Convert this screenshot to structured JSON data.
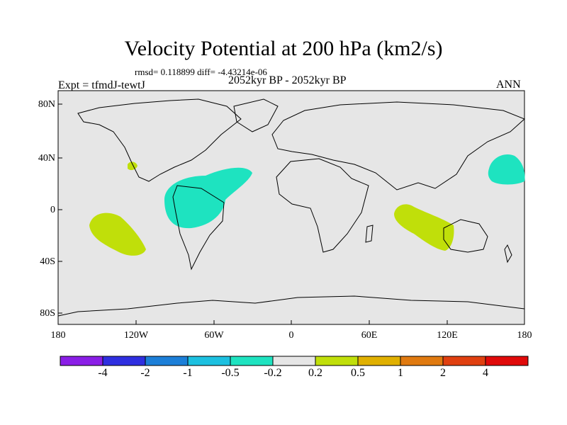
{
  "title": "Velocity Potential at 200 hPa (km2/s)",
  "rmsd_text": "rmsd= 0.118899 diff= -4.43214e-06",
  "left_label": "Expt = tfmdJ-tewtJ",
  "center_label": "2052kyr BP - 2052kyr BP",
  "right_label": "ANN",
  "lat_labels": [
    "80N",
    "40N",
    "0",
    "40S",
    "80S"
  ],
  "lon_labels": [
    "180",
    "120W",
    "60W",
    "0",
    "60E",
    "120E",
    "180"
  ],
  "colorbar": {
    "labels": [
      "-4",
      "-2",
      "-1",
      "-0.5",
      "-0.2",
      "0.2",
      "0.5",
      "1",
      "2",
      "4"
    ],
    "colors": [
      "#8a1ee6",
      "#2f2fe0",
      "#1c7fd8",
      "#1cc0e0",
      "#1ee3c0",
      "#e6e6e6",
      "#c0df0a",
      "#e0b000",
      "#e07a10",
      "#e04010",
      "#e00a0a"
    ]
  },
  "colors": {
    "ocean_bg": "#e6e6e6",
    "negative_fill": "#1ee3c0",
    "positive_fill": "#c0df0a",
    "coastline": "#000000"
  }
}
